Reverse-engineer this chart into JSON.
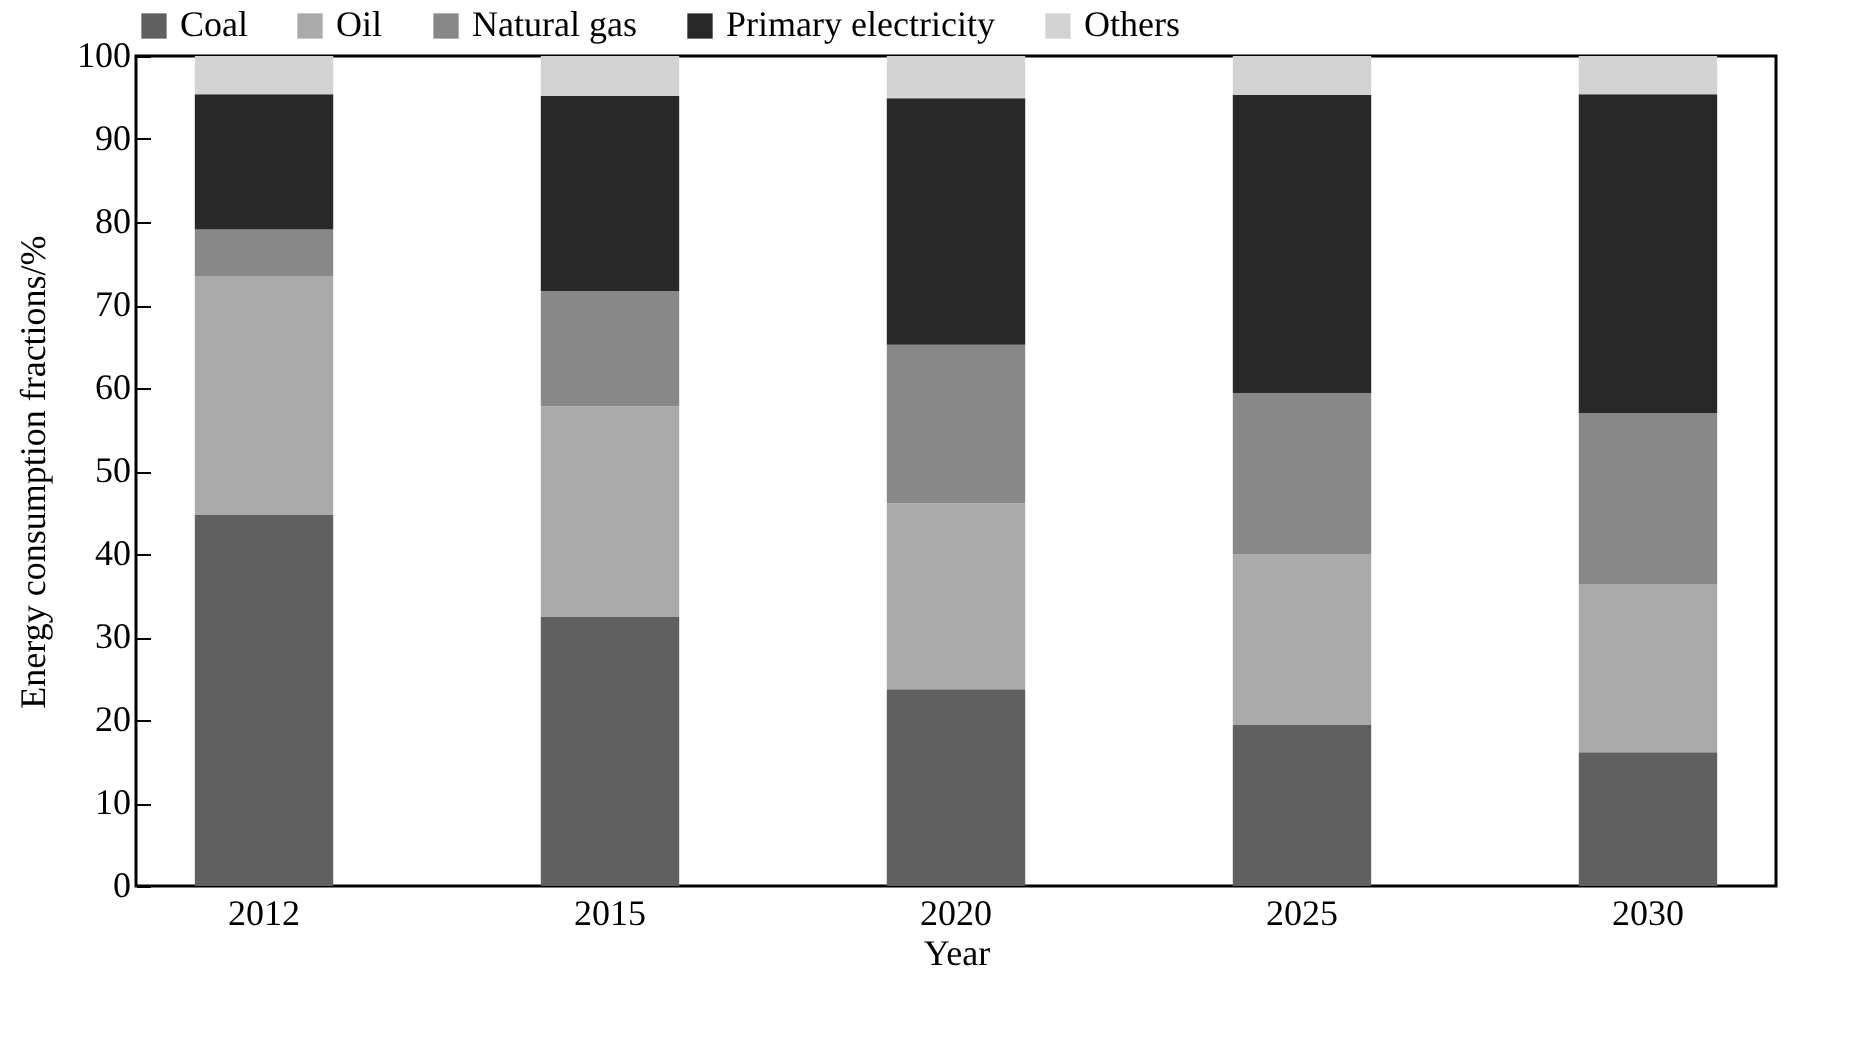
{
  "chart_data": {
    "type": "bar",
    "stacked": true,
    "xlabel": "Year",
    "ylabel": "Energy consumption fractions/%",
    "categories": [
      "2012",
      "2015",
      "2020",
      "2025",
      "2030"
    ],
    "series": [
      {
        "name": "Coal",
        "color": "#606060",
        "values": [
          44.7,
          32.4,
          23.7,
          19.4,
          16.1
        ]
      },
      {
        "name": "Oil",
        "color": "#aaaaaa",
        "values": [
          28.8,
          25.4,
          22.4,
          20.6,
          20.3
        ]
      },
      {
        "name": "Natural gas",
        "color": "#888888",
        "values": [
          5.6,
          13.9,
          19.1,
          19.4,
          20.6
        ]
      },
      {
        "name": "Primary electricity",
        "color": "#282828",
        "values": [
          16.3,
          23.5,
          29.7,
          35.9,
          38.4
        ]
      },
      {
        "name": "Others",
        "color": "#d3d3d3",
        "values": [
          4.6,
          4.8,
          5.1,
          4.7,
          4.6
        ]
      }
    ],
    "ylim": [
      0,
      100
    ],
    "yticks": [
      0,
      10,
      20,
      30,
      40,
      50,
      60,
      70,
      80,
      90,
      100
    ],
    "grid": false,
    "legend": "top"
  }
}
